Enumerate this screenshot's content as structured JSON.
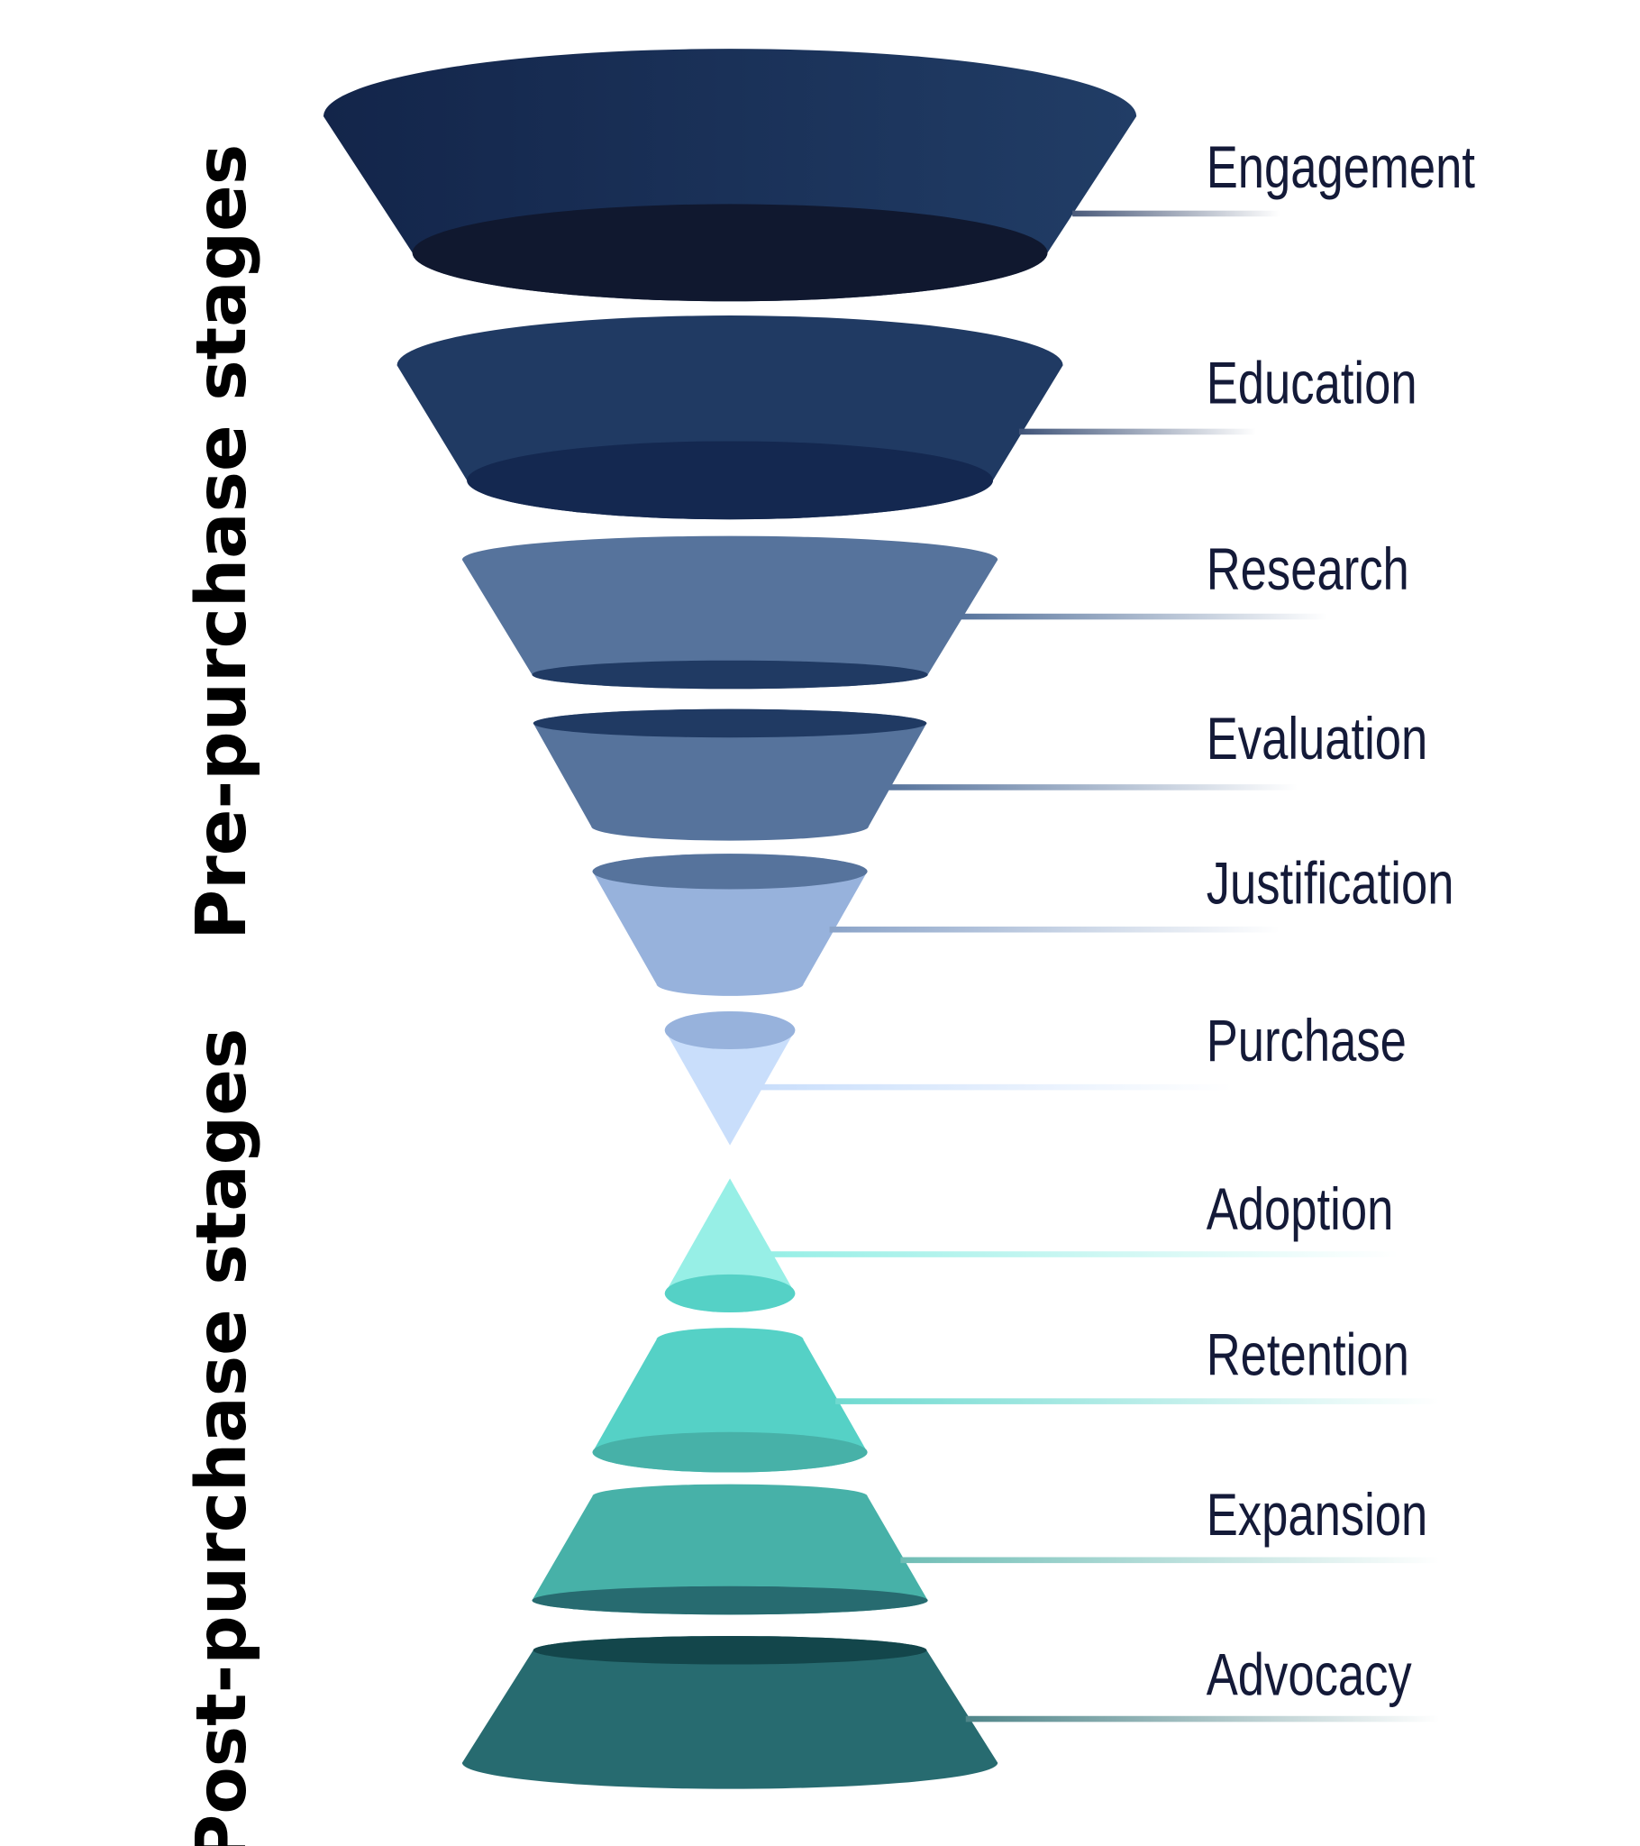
{
  "groups": {
    "pre": "Pre-purchase stages",
    "post": "Post-purchase stages"
  },
  "stages": [
    {
      "label": "Engagement",
      "body": [
        "#13254a",
        "#213d66"
      ],
      "face": "#10182f",
      "line": "#4a5a7a"
    },
    {
      "label": "Education",
      "body": [
        "#203a63",
        "#203a63"
      ],
      "face": "#142850",
      "line": "#3f5378"
    },
    {
      "label": "Research",
      "body": [
        "#56739c",
        "#56739c"
      ],
      "face": "#203a63",
      "line": "#56739c"
    },
    {
      "label": "Evaluation",
      "body": [
        "#56739c",
        "#56739c"
      ],
      "face": "#203a63",
      "line": "#56739c"
    },
    {
      "label": "Justification",
      "body": [
        "#97b2dc",
        "#97b2dc"
      ],
      "face": "#56739c",
      "line": "#8aa3c8"
    },
    {
      "label": "Purchase",
      "body": [
        "#c9defb",
        "#c9defb"
      ],
      "face": "#97b2dc",
      "line": "#c9defb"
    },
    {
      "label": "Adoption",
      "body": [
        "#97efe6",
        "#97efe6"
      ],
      "face": "#55d1c6",
      "line": "#97efe6"
    },
    {
      "label": "Retention",
      "body": [
        "#55d1c6",
        "#55d1c6"
      ],
      "face": "#47b1a8",
      "line": "#6fdad0"
    },
    {
      "label": "Expansion",
      "body": [
        "#47b1a8",
        "#47b1a8"
      ],
      "face": "#276b70",
      "line": "#6fbdb5"
    },
    {
      "label": "Advocacy",
      "body": [
        "#276b70",
        "#276b70"
      ],
      "face": "#13464b",
      "line": "#4f8589"
    }
  ]
}
